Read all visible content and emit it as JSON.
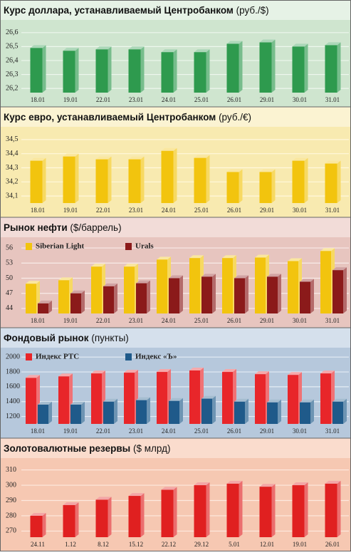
{
  "chart_data": [
    {
      "type": "bar",
      "title": "Курс доллара, устанавливаемый Центробанком",
      "unit": "(руб./$)",
      "categories": [
        "18.01",
        "19.01",
        "22.01",
        "23.01",
        "24.01",
        "25.01",
        "26.01",
        "29.01",
        "30.01",
        "31.01"
      ],
      "series": [
        {
          "color": "#2e9a4e",
          "values": [
            26.49,
            26.47,
            26.48,
            26.48,
            26.46,
            26.46,
            26.52,
            26.53,
            26.5,
            26.51
          ]
        }
      ],
      "ylim": [
        26.17,
        26.65
      ],
      "yticks": [
        {
          "value": 26.2,
          "label": "26,2"
        },
        {
          "value": 26.3,
          "label": "26,3"
        },
        {
          "value": 26.4,
          "label": "26,4"
        },
        {
          "value": 26.5,
          "label": "26,5"
        },
        {
          "value": 26.6,
          "label": "26,6"
        }
      ],
      "grid": true
    },
    {
      "type": "bar",
      "title": "Курс евро, устанавливаемый Центробанком",
      "unit": "(руб./€)",
      "categories": [
        "18.01",
        "19.01",
        "22.01",
        "23.01",
        "24.01",
        "25.01",
        "26.01",
        "29.01",
        "30.01",
        "31.01"
      ],
      "series": [
        {
          "color": "#f2c40e",
          "values": [
            34.35,
            34.38,
            34.36,
            34.36,
            34.42,
            34.37,
            34.27,
            34.27,
            34.35,
            34.33
          ]
        }
      ],
      "ylim": [
        34.05,
        34.55
      ],
      "yticks": [
        {
          "value": 34.1,
          "label": "34,1"
        },
        {
          "value": 34.2,
          "label": "34,2"
        },
        {
          "value": 34.3,
          "label": "34,3"
        },
        {
          "value": 34.4,
          "label": "34,4"
        },
        {
          "value": 34.5,
          "label": "34,5"
        }
      ],
      "grid": true
    },
    {
      "type": "bar",
      "title": "Рынок нефти",
      "unit": "($/баррель)",
      "categories": [
        "18.01",
        "19.01",
        "22.01",
        "23.01",
        "24.01",
        "25.01",
        "26.01",
        "29.01",
        "30.01",
        "31.01"
      ],
      "series": [
        {
          "name": "Siberian Light",
          "color": "#f2c40e",
          "values": [
            48.9,
            49.6,
            52.3,
            52.3,
            53.7,
            54,
            54,
            54.1,
            53.4,
            55.4
          ]
        },
        {
          "name": "Urals",
          "color": "#8b1a1a",
          "values": [
            45,
            47,
            48.4,
            49,
            50,
            50.3,
            50,
            50.3,
            49.3,
            51.6
          ]
        }
      ],
      "ylim": [
        43,
        57
      ],
      "yticks": [
        44,
        47,
        50,
        53,
        56
      ],
      "grid": true
    },
    {
      "type": "bar",
      "title": "Фондовый рынок",
      "unit": "(пункты)",
      "categories": [
        "18.01",
        "19.01",
        "22.01",
        "23.01",
        "24.01",
        "25.01",
        "26.01",
        "29.01",
        "30.01",
        "31.01"
      ],
      "series": [
        {
          "name": "Индекс РТС",
          "color": "#e8262a",
          "values": [
            1720,
            1740,
            1780,
            1790,
            1800,
            1820,
            1800,
            1770,
            1760,
            1780
          ]
        },
        {
          "name": "Индекс «Ъ»",
          "color": "#1f5a8a",
          "values": [
            1360,
            1360,
            1400,
            1420,
            1410,
            1440,
            1400,
            1390,
            1390,
            1400
          ]
        }
      ],
      "ylim": [
        1100,
        2050
      ],
      "yticks": [
        1200,
        1400,
        1600,
        1800,
        2000
      ],
      "grid": true
    },
    {
      "type": "bar",
      "title": "Золотовалютные резервы",
      "unit": "($ млрд)",
      "categories": [
        "24.11",
        "1.12",
        "8.12",
        "15.12",
        "22.12",
        "29.12",
        "5.01",
        "12.01",
        "19.01",
        "26.01"
      ],
      "series": [
        {
          "color": "#e02020",
          "values": [
            280,
            287,
            290.5,
            293,
            297,
            300,
            301,
            299,
            300,
            301
          ]
        }
      ],
      "ylim": [
        266,
        314
      ],
      "yticks": [
        270,
        280,
        290,
        300,
        310
      ],
      "grid": true
    }
  ]
}
